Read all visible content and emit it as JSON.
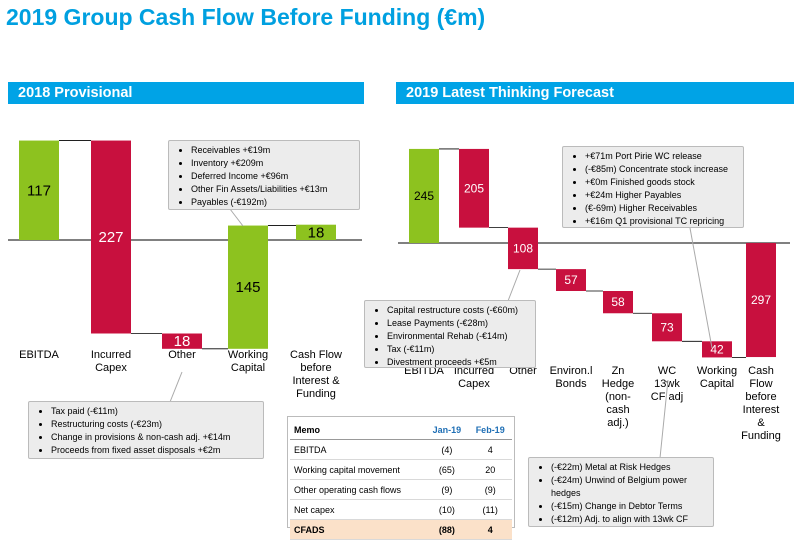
{
  "title": "2019 Group Cash Flow Before Funding (€m)",
  "left_banner": "2018 Provisional",
  "right_banner": "2019 Latest Thinking Forecast",
  "colors": {
    "green": "#8dc21f",
    "red": "#c8103e",
    "banner": "#00a3e6",
    "title": "#00a0e0"
  },
  "chart_data": [
    {
      "type": "bar",
      "title": "2018 Provisional",
      "categories": [
        "EBITDA",
        "Incurred Capex",
        "Other",
        "Working Capital",
        "Cash Flow before Interest & Funding"
      ],
      "bars": [
        {
          "label": "EBITDA",
          "value": 117,
          "start": 0,
          "end": 117,
          "color": "green"
        },
        {
          "label": "Incurred Capex",
          "value": 227,
          "start": 117,
          "end": -110,
          "color": "red"
        },
        {
          "label": "Other",
          "value": 18,
          "start": -110,
          "end": -128,
          "color": "red"
        },
        {
          "label": "Working Capital",
          "value": 145,
          "start": -128,
          "end": 17,
          "color": "green"
        },
        {
          "label": "Cash Flow before Interest & Funding",
          "value": 18,
          "start": 0,
          "end": 18,
          "color": "green"
        }
      ]
    },
    {
      "type": "bar",
      "title": "2019 Latest Thinking Forecast",
      "categories": [
        "EBITDA",
        "Incurred Capex",
        "Other",
        "Environ.l Bonds",
        "Zn Hedge (non-cash adj.)",
        "WC 13wk CF adj",
        "Working Capital",
        "Cash Flow before Interest & Funding"
      ],
      "bars": [
        {
          "label": "EBITDA",
          "value": 245,
          "start": 0,
          "end": 245,
          "color": "green"
        },
        {
          "label": "Incurred Capex",
          "value": 205,
          "start": 245,
          "end": 40,
          "color": "red"
        },
        {
          "label": "Other",
          "value": 108,
          "start": 40,
          "end": -68,
          "color": "red"
        },
        {
          "label": "Environ.l Bonds",
          "value": 57,
          "start": -68,
          "end": -125,
          "color": "red"
        },
        {
          "label": "Zn Hedge (non-cash adj.)",
          "value": 58,
          "start": -125,
          "end": -183,
          "color": "red"
        },
        {
          "label": "WC 13wk CF adj",
          "value": 73,
          "start": -183,
          "end": -256,
          "color": "red"
        },
        {
          "label": "Working Capital",
          "value": 42,
          "start": -256,
          "end": -298,
          "color": "red"
        },
        {
          "label": "Cash Flow before Interest & Funding",
          "value": 297,
          "start": 0,
          "end": -297,
          "color": "red"
        }
      ]
    }
  ],
  "left_labels": [
    [
      "EBITDA"
    ],
    [
      "Incurred",
      "Capex"
    ],
    [
      "Other"
    ],
    [
      "Working",
      "Capital"
    ],
    [
      "Cash Flow",
      "before",
      "Interest &",
      "Funding"
    ]
  ],
  "right_labels": [
    [
      "EBITDA"
    ],
    [
      "Incurred",
      "Capex"
    ],
    [
      "Other"
    ],
    [
      "Environ.l",
      "Bonds"
    ],
    [
      "Zn",
      "Hedge",
      "(non-",
      "cash",
      "adj.)"
    ],
    [
      "WC",
      "13wk",
      "CF adj"
    ],
    [
      "Working",
      "Capital"
    ],
    [
      "Cash",
      "Flow",
      "before",
      "Interest",
      "&",
      "Funding"
    ]
  ],
  "callouts": {
    "left_wc": [
      "Receivables +€19m",
      "Inventory +€209m",
      "Deferred Income +€96m",
      "Other Fin Assets/Liabilities +€13m",
      "Payables (-€192m)"
    ],
    "left_other": [
      "Tax paid  (-€11m)",
      "Restructuring costs (-€23m)",
      "Change in provisions & non-cash adj. +€14m",
      "Proceeds from fixed asset disposals +€2m"
    ],
    "right_other": [
      "Capital restructure  costs (-€60m)",
      "Lease Payments  (-€28m)",
      "Environmental Rehab (-€14m)",
      "Tax  (-€11m)",
      "Divestment proceeds +€5m"
    ],
    "right_wc": [
      "+€71m Port Pirie WC release",
      "(-€85m) Concentrate stock increase",
      "+€0m Finished goods stock",
      "+€24m Higher Payables",
      "(€-69m) Higher Receivables",
      "+€16m Q1 provisional TC repricing"
    ],
    "right_adj": [
      "(-€22m) Metal at Risk Hedges",
      "(-€24m) Unwind of Belgium power hedges",
      "(-€15m) Change in Debtor Terms",
      "(-€12m) Adj. to align with 13wk CF"
    ]
  },
  "memo": {
    "header": [
      "Memo",
      "Jan-19",
      "Feb-19"
    ],
    "rows": [
      [
        "EBITDA",
        "(4)",
        "4"
      ],
      [
        "Working capital movement",
        "(65)",
        "20"
      ],
      [
        "Other operating cash flows",
        "(9)",
        "(9)"
      ],
      [
        "Net capex",
        "(10)",
        "(11)"
      ],
      [
        "CFADS",
        "(88)",
        "4"
      ]
    ]
  }
}
